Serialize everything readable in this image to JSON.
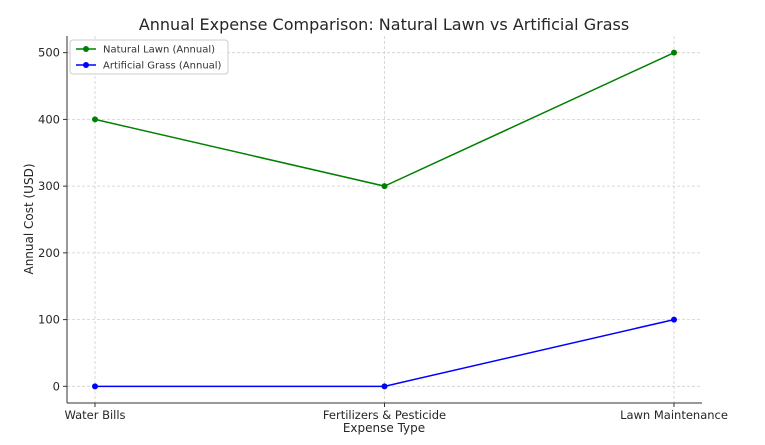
{
  "chart_data": {
    "type": "line",
    "title": "Annual Expense Comparison: Natural Lawn vs Artificial Grass",
    "xlabel": "Expense Type",
    "ylabel": "Annual Cost (USD)",
    "categories": [
      "Water Bills",
      "Fertilizers & Pesticide",
      "Lawn Maintenance"
    ],
    "ylim": [
      -25,
      525
    ],
    "yticks": [
      0,
      100,
      200,
      300,
      400,
      500
    ],
    "grid": true,
    "legend_position": "top-left",
    "series": [
      {
        "name": "Natural Lawn (Annual)",
        "values": [
          400,
          300,
          500
        ],
        "color": "#008000"
      },
      {
        "name": "Artificial Grass (Annual)",
        "values": [
          0,
          0,
          100
        ],
        "color": "#0000ff"
      }
    ]
  }
}
